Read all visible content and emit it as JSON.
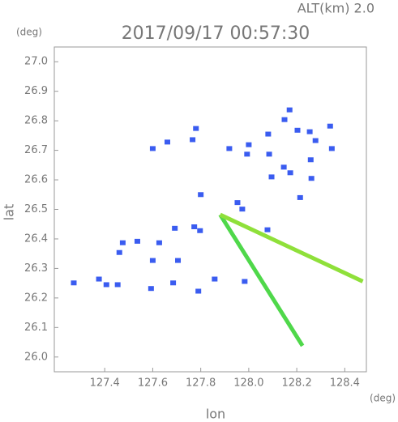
{
  "chart_data": {
    "type": "scatter",
    "title": "2017/09/17 00:57:30",
    "subtitle": "ALT(km) 2.0",
    "y_unit": "(deg)",
    "x_unit": "(deg)",
    "x_label": "lon",
    "y_label": "lat",
    "xlim": [
      127.19,
      128.49
    ],
    "ylim": [
      25.95,
      27.05
    ],
    "xticks": [
      127.4,
      127.6,
      127.8,
      {
        "value": 128.0,
        "label": "128.0"
      },
      128.2,
      128.4
    ],
    "yticks": [
      {
        "value": 26.0,
        "label": "26.0"
      },
      26.1,
      26.2,
      26.3,
      26.4,
      26.5,
      26.6,
      26.7,
      26.8,
      26.9,
      {
        "value": 27.0,
        "label": "27.0"
      }
    ],
    "grid": false,
    "series": [
      {
        "color": "#3a5cf0",
        "line": false,
        "x": [
          128.17,
          128.149,
          128.203,
          128.254,
          128.339,
          128.278,
          128.346,
          128.081,
          128.0,
          127.919,
          127.78,
          127.766,
          127.661,
          127.6,
          127.993,
          128.085,
          128.146,
          128.173,
          128.095,
          128.258,
          128.261,
          128.214,
          127.953,
          127.973,
          128.078,
          127.8,
          127.773,
          127.797,
          127.692,
          127.627,
          127.475,
          127.536,
          127.461,
          127.6,
          127.705,
          127.376,
          127.407,
          127.271,
          127.454,
          127.593,
          127.858,
          127.79,
          127.983,
          127.685
        ],
        "y": [
          26.837,
          26.804,
          26.768,
          26.763,
          26.782,
          26.733,
          26.706,
          26.755,
          26.719,
          26.706,
          26.774,
          26.736,
          26.728,
          26.706,
          26.687,
          26.687,
          26.643,
          26.624,
          26.61,
          26.668,
          26.605,
          26.54,
          26.523,
          26.501,
          26.431,
          26.55,
          26.441,
          26.428,
          26.436,
          26.387,
          26.387,
          26.392,
          26.354,
          26.327,
          26.327,
          26.264,
          26.245,
          26.251,
          26.245,
          26.232,
          26.264,
          26.223,
          26.256,
          26.251
        ]
      },
      {
        "color": "#4fd84a",
        "line": true,
        "x": [
          127.881,
          128.224
        ],
        "y": [
          26.482,
          26.038
        ]
      },
      {
        "color": "#8fe03a",
        "line": true,
        "x": [
          127.881,
          128.475
        ],
        "y": [
          26.482,
          26.256
        ]
      }
    ]
  }
}
